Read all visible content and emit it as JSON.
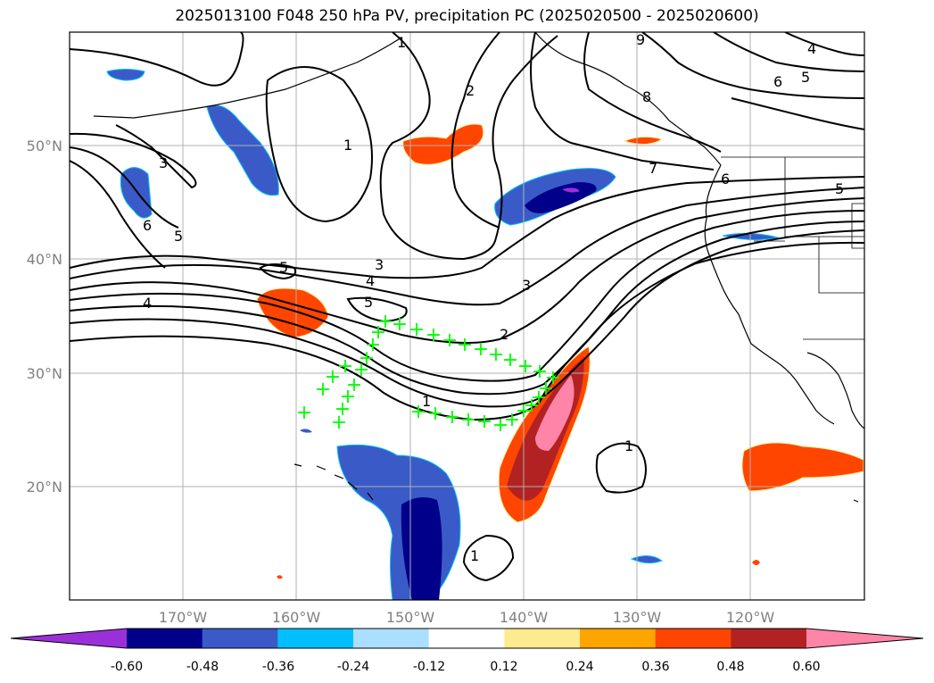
{
  "title": "2025013100 F048 250 hPa PV, precipitation PC (2025020500 - 2025020600)",
  "lon_labels": [
    "170°W",
    "160°W",
    "150°W",
    "140°W",
    "130°W",
    "120°W"
  ],
  "lat_labels": [
    "50°N",
    "40°N",
    "30°N",
    "20°N"
  ],
  "contour_labels": [
    "1",
    "1",
    "1",
    "1",
    "1",
    "2",
    "2",
    "3",
    "3",
    "3",
    "4",
    "4",
    "4",
    "5",
    "5",
    "5",
    "5",
    "5",
    "6",
    "6",
    "6",
    "7",
    "8",
    "9"
  ],
  "colorbar": {
    "colors": [
      "#9b30d9",
      "#00008b",
      "#3a5bc7",
      "#00bfff",
      "#aadfff",
      "#ffffff",
      "#ffeb8f",
      "#ffa500",
      "#ff4500",
      "#b22222",
      "#ff85a8"
    ],
    "tick_labels": [
      "-0.60",
      "-0.48",
      "-0.36",
      "-0.24",
      "-0.12",
      "0.12",
      "0.24",
      "0.36",
      "0.48",
      "0.60"
    ]
  },
  "marker_color": "#00ff00",
  "marker_symbol": "+"
}
